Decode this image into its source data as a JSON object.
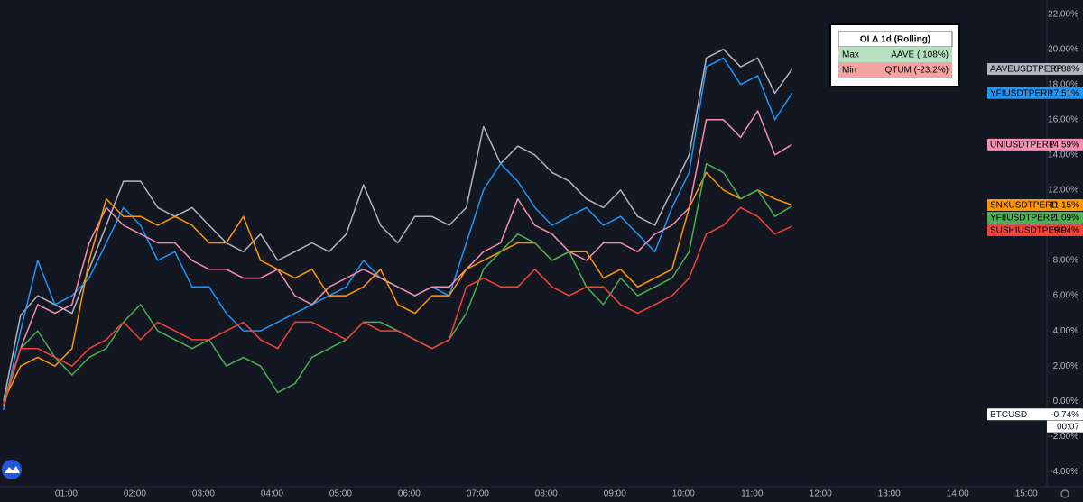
{
  "chart_data": {
    "type": "line",
    "x": [
      "00:05",
      "00:20",
      "00:35",
      "00:50",
      "01:05",
      "01:20",
      "01:35",
      "01:50",
      "02:05",
      "02:20",
      "02:35",
      "02:50",
      "03:05",
      "03:20",
      "03:35",
      "03:50",
      "04:05",
      "04:20",
      "04:35",
      "04:50",
      "05:05",
      "05:20",
      "05:35",
      "05:50",
      "06:05",
      "06:20",
      "06:35",
      "06:50",
      "07:05",
      "07:20",
      "07:35",
      "07:50",
      "08:05",
      "08:20",
      "08:35",
      "08:50",
      "09:05",
      "09:20",
      "09:35",
      "09:50",
      "10:05",
      "10:20",
      "10:35",
      "10:50",
      "11:05",
      "11:20",
      "11:35"
    ],
    "xlim": [
      "00:02",
      "15:18"
    ],
    "xticks": [
      "01:00",
      "02:00",
      "03:00",
      "04:00",
      "05:00",
      "06:00",
      "07:00",
      "08:00",
      "09:00",
      "10:00",
      "11:00",
      "12:00",
      "13:00",
      "14:00",
      "15:00"
    ],
    "ylim": [
      -4.8,
      22.8
    ],
    "yticks": [
      {
        "value": 22,
        "label": "22.00%"
      },
      {
        "value": 20,
        "label": "20.00%"
      },
      {
        "value": 18,
        "label": "18.00%"
      },
      {
        "value": 16,
        "label": "16.00%"
      },
      {
        "value": 14,
        "label": "14.00%"
      },
      {
        "value": 12,
        "label": "12.00%"
      },
      {
        "value": 10,
        "label": "10.00%"
      },
      {
        "value": 8,
        "label": "8.00%"
      },
      {
        "value": 6,
        "label": "6.00%"
      },
      {
        "value": 4,
        "label": "4.00%"
      },
      {
        "value": 2,
        "label": "2.00%"
      },
      {
        "value": 0,
        "label": "0.00%"
      },
      {
        "value": -2,
        "label": "-2.00%"
      },
      {
        "value": -4,
        "label": "-4.00%"
      }
    ],
    "grid": false,
    "series": [
      {
        "name": "AAVEUSDTPERP",
        "color": "#b2b5be",
        "last_label": "18.88%",
        "values": [
          0,
          4.9,
          6,
          5.5,
          5,
          7.5,
          10,
          12.5,
          12.5,
          11,
          10.5,
          11,
          10,
          9,
          8.5,
          9.5,
          8,
          8.5,
          9,
          8.5,
          9.5,
          12.3,
          10,
          9,
          10.5,
          10.5,
          10,
          11,
          15.6,
          13.5,
          14.5,
          14,
          13,
          12.5,
          11.5,
          11,
          12,
          10.5,
          10,
          12,
          14,
          19.5,
          20,
          19,
          19.5,
          17.5,
          18.88
        ]
      },
      {
        "name": "YFIUSDTPERP",
        "color": "#2196f3",
        "last_label": "17.51%",
        "values": [
          -0.5,
          4,
          8,
          5.5,
          6,
          7,
          9,
          11,
          10,
          8,
          8.5,
          6.5,
          6.5,
          5,
          4,
          4,
          4.5,
          5,
          5.5,
          6,
          6.5,
          8,
          7,
          6.5,
          6,
          6.5,
          6,
          9,
          12,
          13.5,
          12.5,
          11,
          10,
          10.5,
          11,
          10,
          10.5,
          9.5,
          8.5,
          11,
          13,
          19,
          19.5,
          18,
          18.5,
          16,
          17.51
        ]
      },
      {
        "name": "UNIUSDTPERP",
        "color": "#f48fb1",
        "last_label": "14.59%",
        "values": [
          -0.3,
          3,
          5.5,
          5,
          5.5,
          9,
          11,
          10,
          9.5,
          9,
          9,
          8,
          7.5,
          7.5,
          7,
          7,
          7.5,
          6,
          5.5,
          6.5,
          7,
          7.5,
          7,
          6.5,
          6,
          6.5,
          6.5,
          7.5,
          8.5,
          9,
          11.5,
          10,
          9.5,
          8.5,
          8,
          9,
          9,
          8.5,
          9.5,
          10,
          11,
          16,
          16,
          15,
          16.5,
          14,
          14.59
        ]
      },
      {
        "name": "SNXUSDTPERP",
        "color": "#ff9800",
        "last_label": "11.15%",
        "values": [
          0,
          2,
          2.5,
          2,
          3,
          8,
          11.5,
          10.5,
          10.5,
          10,
          10.5,
          10,
          9,
          9,
          10.5,
          8,
          7.5,
          7,
          7.5,
          6,
          6,
          6.5,
          7.5,
          5.5,
          5,
          6,
          6,
          7.5,
          8,
          8.5,
          9,
          9,
          8,
          8.5,
          8.5,
          7,
          7.5,
          6.5,
          7,
          7.5,
          11,
          13,
          12,
          11.5,
          12,
          11.5,
          11.15
        ]
      },
      {
        "name": "YFIIUSDTPERP",
        "color": "#4caf50",
        "last_label": "11.09%",
        "values": [
          0,
          3,
          4,
          2.5,
          1.5,
          2.5,
          3,
          4.5,
          5.5,
          4,
          3.5,
          3,
          3.5,
          2,
          2.5,
          2,
          0.5,
          1,
          2.5,
          3,
          3.5,
          4.5,
          4.5,
          4,
          3.5,
          3,
          3.5,
          5,
          7.5,
          8.5,
          9.5,
          9,
          8,
          8.5,
          6.5,
          5.5,
          7,
          6,
          6.5,
          7,
          8.5,
          13.5,
          13,
          11.5,
          12,
          10.5,
          11.09
        ]
      },
      {
        "name": "SUSHIUSDTPERP",
        "color": "#f44336",
        "last_label": "9.94%",
        "values": [
          -0.2,
          3,
          3,
          2.5,
          2,
          3,
          3.5,
          4.5,
          3.5,
          4.5,
          4,
          3.5,
          3.5,
          4,
          4.5,
          3.5,
          3,
          4.5,
          4.5,
          4,
          3.5,
          4.5,
          4,
          4,
          3.5,
          3,
          3.5,
          6.5,
          7,
          6.5,
          6.5,
          7.5,
          6.5,
          6,
          6.5,
          6.5,
          5.5,
          5,
          5.5,
          6,
          7,
          9.5,
          10,
          11,
          10.5,
          9.5,
          9.94
        ]
      }
    ],
    "tags": [
      {
        "name": "BTCUSD",
        "value": -0.74,
        "label": "-0.74%",
        "countdown": "00:07"
      }
    ],
    "table": {
      "title": "OI Δ 1d (Rolling)",
      "rows": [
        [
          "Max",
          "AAVE ( 108%)"
        ],
        [
          "Min",
          "QTUM (-23.2%)"
        ]
      ]
    }
  }
}
